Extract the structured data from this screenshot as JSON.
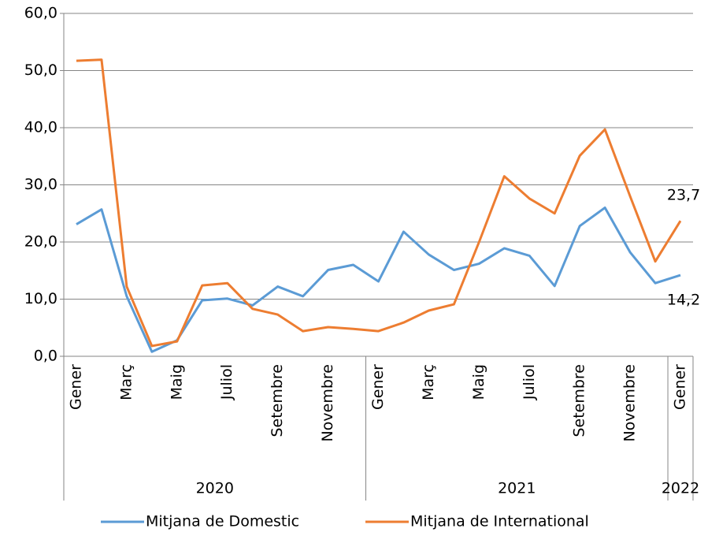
{
  "chart_data": {
    "type": "line",
    "categories": [
      "Gener",
      null,
      "Març",
      null,
      "Maig",
      null,
      "Juliol",
      null,
      "Setembre",
      null,
      "Novembre",
      null,
      "Gener",
      null,
      "Març",
      null,
      "Maig",
      null,
      "Juliol",
      null,
      "Setembre",
      null,
      "Novembre",
      null,
      "Gener"
    ],
    "groups": [
      {
        "label": "2020",
        "span": 12
      },
      {
        "label": "2021",
        "span": 12
      },
      {
        "label": "2022",
        "span": 1
      }
    ],
    "series": [
      {
        "name": "Mitjana de Domestic",
        "color": "#5b9bd5",
        "values": [
          23.1,
          25.7,
          10.5,
          0.8,
          2.8,
          9.8,
          10.1,
          8.9,
          12.2,
          10.5,
          15.1,
          16.0,
          13.1,
          21.8,
          17.8,
          15.1,
          16.2,
          18.9,
          17.6,
          12.3,
          22.8,
          26.0,
          18.2,
          12.8,
          14.2
        ],
        "value_labels": [
          null,
          null,
          null,
          null,
          null,
          null,
          null,
          null,
          null,
          null,
          null,
          null,
          null,
          null,
          null,
          null,
          null,
          null,
          null,
          null,
          null,
          null,
          null,
          null,
          "14,2"
        ]
      },
      {
        "name": "Mitjana de International",
        "color": "#ed7d31",
        "values": [
          51.7,
          51.9,
          12.2,
          1.8,
          2.6,
          12.4,
          12.8,
          8.3,
          7.3,
          4.4,
          5.1,
          4.8,
          4.4,
          5.9,
          8.0,
          9.1,
          20.0,
          31.5,
          27.6,
          25.0,
          35.1,
          39.7,
          28.0,
          16.6,
          23.7
        ],
        "value_labels": [
          null,
          null,
          null,
          null,
          null,
          null,
          null,
          null,
          null,
          null,
          null,
          null,
          null,
          null,
          null,
          null,
          null,
          null,
          null,
          null,
          null,
          null,
          null,
          null,
          "23,7"
        ]
      }
    ],
    "ylim": [
      0,
      60
    ],
    "yticks": [
      {
        "value": 0,
        "label": "0,0"
      },
      {
        "value": 10,
        "label": "10,0"
      },
      {
        "value": 20,
        "label": "20,0"
      },
      {
        "value": 30,
        "label": "30,0"
      },
      {
        "value": 40,
        "label": "40,0"
      },
      {
        "value": 50,
        "label": "50,0"
      },
      {
        "value": 60,
        "label": "60,0"
      }
    ],
    "grid": true,
    "legend": "bottom"
  }
}
